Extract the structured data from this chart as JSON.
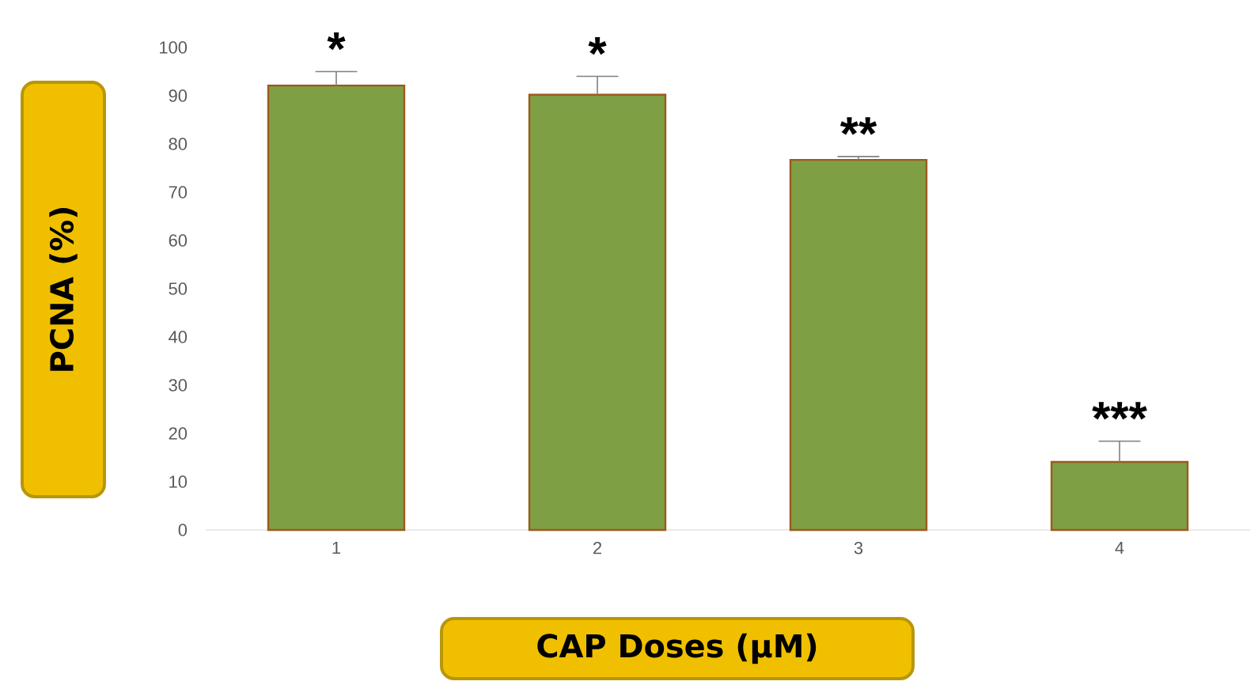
{
  "chart_data": {
    "type": "bar",
    "xlabel": "CAP Doses (µM)",
    "ylabel": "PCNA (%)",
    "categories": [
      "1",
      "2",
      "3",
      "4"
    ],
    "values": [
      92.1,
      90.2,
      76.7,
      14.1
    ],
    "errors": [
      [
        92.1,
        95
      ],
      [
        90.2,
        94
      ],
      [
        76.7,
        77.4
      ],
      [
        14.1,
        18.4
      ]
    ],
    "color": "#7f9f45",
    "ylim": [
      0,
      100
    ],
    "yticks": [
      0,
      10,
      20,
      30,
      40,
      50,
      60,
      70,
      80,
      90,
      100
    ],
    "annotations": [
      {
        "text": "*",
        "x": "1",
        "y": 95
      },
      {
        "text": "*",
        "x": "2",
        "y": 94
      },
      {
        "text": "**",
        "x": "3",
        "y": 77.4
      },
      {
        "text": "***",
        "x": "4",
        "y": 18.4
      }
    ]
  }
}
